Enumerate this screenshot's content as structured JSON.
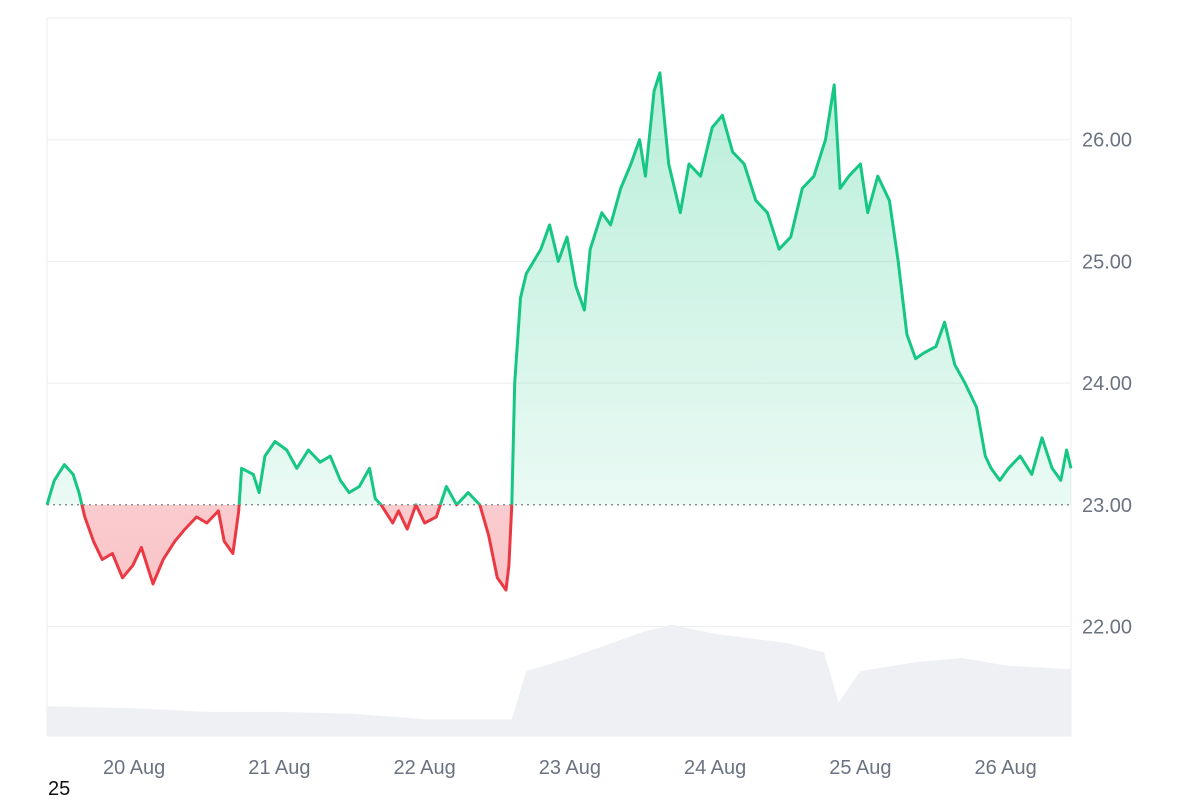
{
  "chart_data": {
    "type": "area",
    "baseline": 23.0,
    "ylim": [
      21.1,
      27.0
    ],
    "yticks": [
      "22.00",
      "23.00",
      "24.00",
      "25.00",
      "26.00"
    ],
    "xticks": [
      "20 Aug",
      "21 Aug",
      "22 Aug",
      "23 Aug",
      "24 Aug",
      "25 Aug",
      "26 Aug"
    ],
    "x_range_days": [
      19.4,
      26.45
    ],
    "colors": {
      "up": "#16c784",
      "down": "#ea3943",
      "volume": "#eef0f3",
      "grid": "#eceef1"
    },
    "price": [
      [
        19.4,
        23.0
      ],
      [
        19.45,
        23.2
      ],
      [
        19.52,
        23.33
      ],
      [
        19.58,
        23.25
      ],
      [
        19.62,
        23.1
      ],
      [
        19.66,
        22.9
      ],
      [
        19.72,
        22.7
      ],
      [
        19.78,
        22.55
      ],
      [
        19.85,
        22.6
      ],
      [
        19.92,
        22.4
      ],
      [
        19.99,
        22.5
      ],
      [
        20.05,
        22.65
      ],
      [
        20.13,
        22.35
      ],
      [
        20.2,
        22.55
      ],
      [
        20.28,
        22.7
      ],
      [
        20.35,
        22.8
      ],
      [
        20.43,
        22.9
      ],
      [
        20.5,
        22.85
      ],
      [
        20.58,
        22.95
      ],
      [
        20.62,
        22.7
      ],
      [
        20.68,
        22.6
      ],
      [
        20.72,
        22.95
      ],
      [
        20.74,
        23.3
      ],
      [
        20.82,
        23.25
      ],
      [
        20.86,
        23.1
      ],
      [
        20.9,
        23.4
      ],
      [
        20.97,
        23.52
      ],
      [
        21.05,
        23.45
      ],
      [
        21.12,
        23.3
      ],
      [
        21.2,
        23.45
      ],
      [
        21.28,
        23.35
      ],
      [
        21.35,
        23.4
      ],
      [
        21.42,
        23.2
      ],
      [
        21.48,
        23.1
      ],
      [
        21.55,
        23.15
      ],
      [
        21.62,
        23.3
      ],
      [
        21.66,
        23.05
      ],
      [
        21.7,
        23.0
      ],
      [
        21.78,
        22.85
      ],
      [
        21.82,
        22.95
      ],
      [
        21.88,
        22.8
      ],
      [
        21.94,
        23.0
      ],
      [
        22.0,
        22.85
      ],
      [
        22.08,
        22.9
      ],
      [
        22.15,
        23.15
      ],
      [
        22.22,
        23.0
      ],
      [
        22.3,
        23.1
      ],
      [
        22.38,
        23.0
      ],
      [
        22.44,
        22.75
      ],
      [
        22.5,
        22.4
      ],
      [
        22.56,
        22.3
      ],
      [
        22.58,
        22.5
      ],
      [
        22.6,
        23.0
      ],
      [
        22.62,
        24.0
      ],
      [
        22.66,
        24.7
      ],
      [
        22.7,
        24.9
      ],
      [
        22.75,
        25.0
      ],
      [
        22.8,
        25.1
      ],
      [
        22.86,
        25.3
      ],
      [
        22.92,
        25.0
      ],
      [
        22.98,
        25.2
      ],
      [
        23.04,
        24.8
      ],
      [
        23.1,
        24.6
      ],
      [
        23.14,
        25.1
      ],
      [
        23.22,
        25.4
      ],
      [
        23.28,
        25.3
      ],
      [
        23.35,
        25.6
      ],
      [
        23.42,
        25.8
      ],
      [
        23.48,
        26.0
      ],
      [
        23.52,
        25.7
      ],
      [
        23.58,
        26.4
      ],
      [
        23.62,
        26.55
      ],
      [
        23.68,
        25.8
      ],
      [
        23.76,
        25.4
      ],
      [
        23.82,
        25.8
      ],
      [
        23.9,
        25.7
      ],
      [
        23.98,
        26.1
      ],
      [
        24.05,
        26.2
      ],
      [
        24.12,
        25.9
      ],
      [
        24.2,
        25.8
      ],
      [
        24.28,
        25.5
      ],
      [
        24.36,
        25.4
      ],
      [
        24.44,
        25.1
      ],
      [
        24.52,
        25.2
      ],
      [
        24.6,
        25.6
      ],
      [
        24.68,
        25.7
      ],
      [
        24.76,
        26.0
      ],
      [
        24.82,
        26.45
      ],
      [
        24.86,
        25.6
      ],
      [
        24.92,
        25.7
      ],
      [
        25.0,
        25.8
      ],
      [
        25.05,
        25.4
      ],
      [
        25.12,
        25.7
      ],
      [
        25.2,
        25.5
      ],
      [
        25.26,
        25.0
      ],
      [
        25.32,
        24.4
      ],
      [
        25.38,
        24.2
      ],
      [
        25.44,
        24.25
      ],
      [
        25.52,
        24.3
      ],
      [
        25.58,
        24.5
      ],
      [
        25.65,
        24.15
      ],
      [
        25.72,
        24.0
      ],
      [
        25.8,
        23.8
      ],
      [
        25.86,
        23.4
      ],
      [
        25.9,
        23.3
      ],
      [
        25.96,
        23.2
      ],
      [
        26.02,
        23.3
      ],
      [
        26.1,
        23.4
      ],
      [
        26.18,
        23.25
      ],
      [
        26.25,
        23.55
      ],
      [
        26.32,
        23.3
      ],
      [
        26.38,
        23.2
      ],
      [
        26.42,
        23.45
      ],
      [
        26.45,
        23.3
      ]
    ],
    "volume": [
      [
        19.4,
        0.16
      ],
      [
        20.0,
        0.15
      ],
      [
        20.5,
        0.13
      ],
      [
        21.0,
        0.13
      ],
      [
        21.5,
        0.12
      ],
      [
        22.0,
        0.09
      ],
      [
        22.6,
        0.09
      ],
      [
        22.7,
        0.35
      ],
      [
        23.0,
        0.42
      ],
      [
        23.5,
        0.56
      ],
      [
        23.7,
        0.6
      ],
      [
        24.0,
        0.55
      ],
      [
        24.5,
        0.5
      ],
      [
        24.75,
        0.45
      ],
      [
        24.85,
        0.18
      ],
      [
        25.0,
        0.35
      ],
      [
        25.4,
        0.4
      ],
      [
        25.7,
        0.42
      ],
      [
        26.0,
        0.38
      ],
      [
        26.45,
        0.36
      ]
    ]
  },
  "footer": {
    "label": "25"
  }
}
